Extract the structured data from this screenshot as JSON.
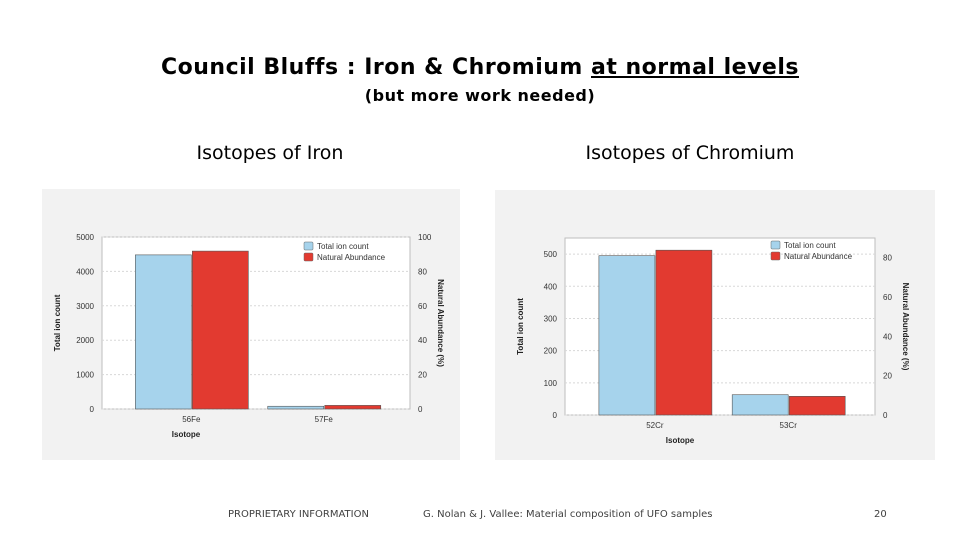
{
  "slide": {
    "title_main": "Council Bluffs : Iron & Chromium ",
    "title_underlined": "at normal levels",
    "subtitle": "(but more work needed)",
    "caption_left": "Isotopes of Iron",
    "caption_right": "Isotopes of Chromium",
    "footer_left": "PROPRIETARY INFORMATION",
    "footer_mid": "G. Nolan & J. Vallee: Material composition of UFO samples",
    "page_number": "20"
  },
  "chart_data": [
    {
      "type": "bar",
      "categories": [
        "56Fe",
        "57Fe"
      ],
      "series": [
        {
          "name": "Total ion count",
          "axis": "left",
          "values": [
            4480,
            80
          ]
        },
        {
          "name": "Natural Abundance",
          "axis": "right",
          "values": [
            91.8,
            2.1
          ]
        }
      ],
      "xlabel": "Isotope",
      "ylabel": "Total ion count",
      "ylabel_right": "Natural Abundance (%)",
      "ylim": [
        0,
        5000
      ],
      "ylim_right": [
        0,
        100
      ],
      "yticks": [
        0,
        1000,
        2000,
        3000,
        4000,
        5000
      ],
      "yticks_right": [
        0,
        20,
        40,
        60,
        80,
        100
      ],
      "grid": true,
      "legend": "top-right",
      "colors": {
        "Total ion count": "#a6d3ec",
        "Natural Abundance": "#e23a30"
      }
    },
    {
      "type": "bar",
      "categories": [
        "52Cr",
        "53Cr"
      ],
      "series": [
        {
          "name": "Total ion count",
          "axis": "left",
          "values": [
            495,
            63
          ]
        },
        {
          "name": "Natural Abundance",
          "axis": "right",
          "values": [
            83.8,
            9.5
          ]
        }
      ],
      "xlabel": "Isotope",
      "ylabel": "Total ion count",
      "ylabel_right": "Natural Abundance (%)",
      "ylim": [
        0,
        550
      ],
      "ylim_right": [
        0,
        90
      ],
      "yticks": [
        0,
        100,
        200,
        300,
        400,
        500
      ],
      "yticks_right": [
        0,
        20,
        40,
        60,
        80
      ],
      "grid": true,
      "legend": "top-right",
      "colors": {
        "Total ion count": "#a6d3ec",
        "Natural Abundance": "#e23a30"
      }
    }
  ]
}
